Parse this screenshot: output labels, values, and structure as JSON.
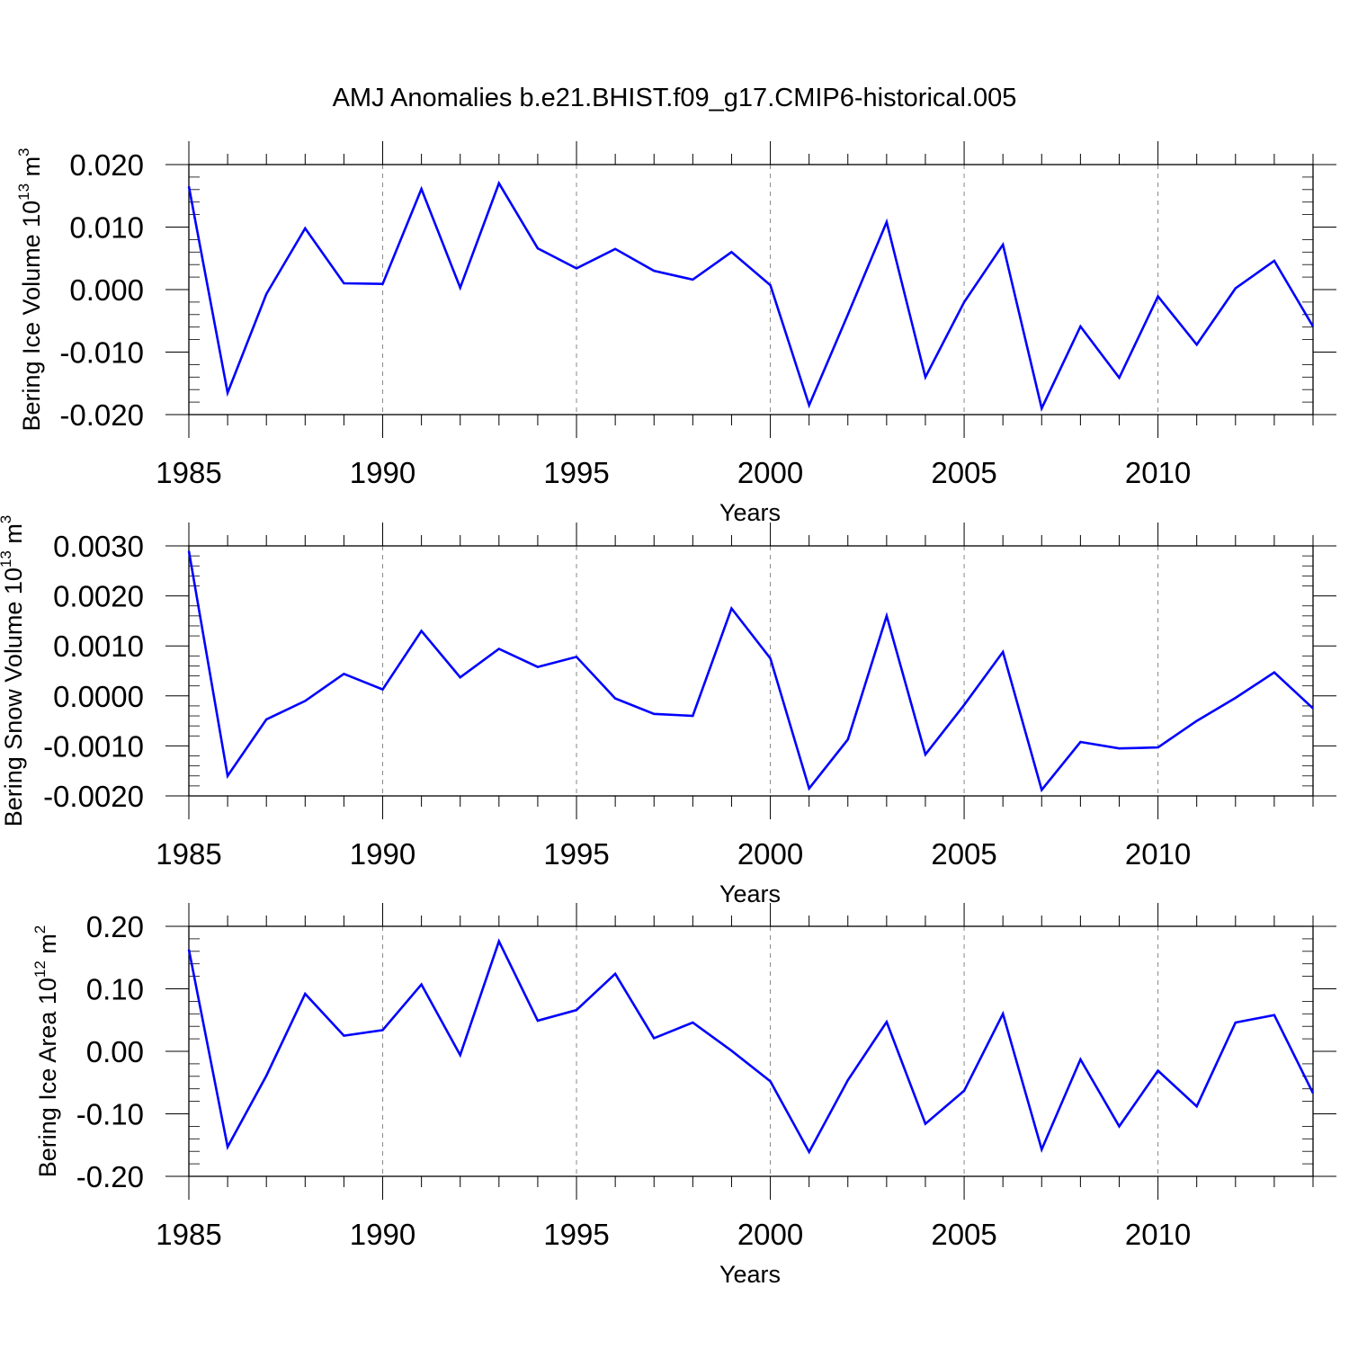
{
  "title": "AMJ Anomalies b.e21.BHIST.f09_g17.CMIP6-historical.005",
  "line_color": "#0000ff",
  "chart_data": [
    {
      "type": "line",
      "ylabel": "Bering Ice Volume 10",
      "ylabel_exp": "13",
      "ylabel_unit": " m",
      "ylabel_unit_exp": "3",
      "xlabel": "Years",
      "xlim": [
        1985,
        2014
      ],
      "ylim": [
        -0.02,
        0.02
      ],
      "x_ticks": [
        "1985",
        "1990",
        "1995",
        "2000",
        "2005",
        "2010"
      ],
      "y_ticks": [
        "-0.020",
        "-0.010",
        "0.000",
        "0.010",
        "0.020"
      ],
      "x": [
        1985,
        1986,
        1987,
        1988,
        1989,
        1990,
        1991,
        1992,
        1993,
        1994,
        1995,
        1996,
        1997,
        1998,
        1999,
        2000,
        2001,
        2002,
        2003,
        2004,
        2005,
        2006,
        2007,
        2008,
        2009,
        2010,
        2011,
        2012,
        2013,
        2014
      ],
      "y": [
        0.0165,
        -0.0165,
        -0.0007,
        0.0098,
        0.001,
        0.0009,
        0.0161,
        0.0003,
        0.017,
        0.0066,
        0.0034,
        0.0065,
        0.003,
        0.0016,
        0.006,
        0.0007,
        -0.0185,
        -0.004,
        0.0108,
        -0.014,
        -0.002,
        0.0072,
        -0.019,
        -0.0059,
        -0.0141,
        -0.0011,
        -0.0088,
        0.0002,
        0.0046,
        -0.0059
      ]
    },
    {
      "type": "line",
      "ylabel": "Bering Snow Volume 10",
      "ylabel_exp": "13",
      "ylabel_unit": " m",
      "ylabel_unit_exp": "3",
      "xlabel": "Years",
      "xlim": [
        1985,
        2014
      ],
      "ylim": [
        -0.002,
        0.003
      ],
      "x_ticks": [
        "1985",
        "1990",
        "1995",
        "2000",
        "2005",
        "2010"
      ],
      "y_ticks": [
        "-0.0020",
        "-0.0010",
        "0.0000",
        "0.0010",
        "0.0020",
        "0.0030"
      ],
      "x": [
        1985,
        1986,
        1987,
        1988,
        1989,
        1990,
        1991,
        1992,
        1993,
        1994,
        1995,
        1996,
        1997,
        1998,
        1999,
        2000,
        2001,
        2002,
        2003,
        2004,
        2005,
        2006,
        2007,
        2008,
        2009,
        2010,
        2011,
        2012,
        2013,
        2014
      ],
      "y": [
        0.0029,
        -0.0016,
        -0.00047,
        -0.0001,
        0.00044,
        0.00013,
        0.0013,
        0.00037,
        0.00094,
        0.00058,
        0.00078,
        -5e-05,
        -0.00036,
        -0.0004,
        0.00175,
        0.00075,
        -0.00185,
        -0.00087,
        0.0016,
        -0.00117,
        -0.00018,
        0.00088,
        -0.00188,
        -0.00092,
        -0.00105,
        -0.00103,
        -0.0005,
        -4e-05,
        0.00047,
        -0.00025
      ]
    },
    {
      "type": "line",
      "ylabel": "Bering Ice Area 10",
      "ylabel_exp": "12",
      "ylabel_unit": " m",
      "ylabel_unit_exp": "2",
      "xlabel": "Years",
      "xlim": [
        1985,
        2014
      ],
      "ylim": [
        -0.2,
        0.2
      ],
      "x_ticks": [
        "1985",
        "1990",
        "1995",
        "2000",
        "2005",
        "2010"
      ],
      "y_ticks": [
        "-0.20",
        "-0.10",
        "0.00",
        "0.10",
        "0.20"
      ],
      "x": [
        1985,
        1986,
        1987,
        1988,
        1989,
        1990,
        1991,
        1992,
        1993,
        1994,
        1995,
        1996,
        1997,
        1998,
        1999,
        2000,
        2001,
        2002,
        2003,
        2004,
        2005,
        2006,
        2007,
        2008,
        2009,
        2010,
        2011,
        2012,
        2013,
        2014
      ],
      "y": [
        0.163,
        -0.153,
        -0.039,
        0.092,
        0.025,
        0.034,
        0.107,
        -0.006,
        0.176,
        0.049,
        0.066,
        0.124,
        0.021,
        0.046,
        0.001,
        -0.048,
        -0.161,
        -0.046,
        0.047,
        -0.116,
        -0.063,
        0.06,
        -0.157,
        -0.013,
        -0.12,
        -0.031,
        -0.088,
        0.046,
        0.058,
        -0.067
      ]
    }
  ]
}
